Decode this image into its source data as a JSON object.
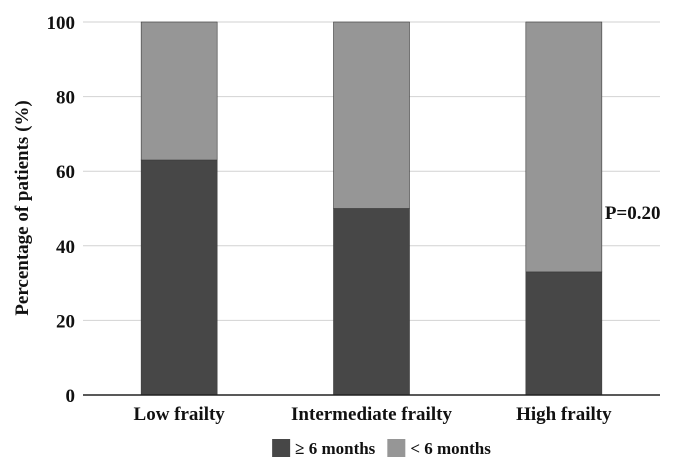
{
  "chart_data": {
    "type": "bar",
    "stacked": true,
    "percent_stacked": true,
    "categories": [
      "Low frailty",
      "Intermediate frailty",
      "High frailty"
    ],
    "series": [
      {
        "name": "≥ 6 months",
        "values": [
          63,
          50,
          33
        ],
        "color": "#474747"
      },
      {
        "name": "< 6 months",
        "values": [
          37,
          50,
          67
        ],
        "color": "#969696"
      }
    ],
    "ylabel": "Percentage of patients (%)",
    "xlabel": "",
    "ylim": [
      0,
      100
    ],
    "yticks": [
      0,
      20,
      40,
      60,
      80,
      100
    ],
    "grid": "horizontal",
    "legend_position": "bottom",
    "annotations": [
      {
        "text": "P=0.20",
        "category": "High frailty"
      }
    ]
  }
}
